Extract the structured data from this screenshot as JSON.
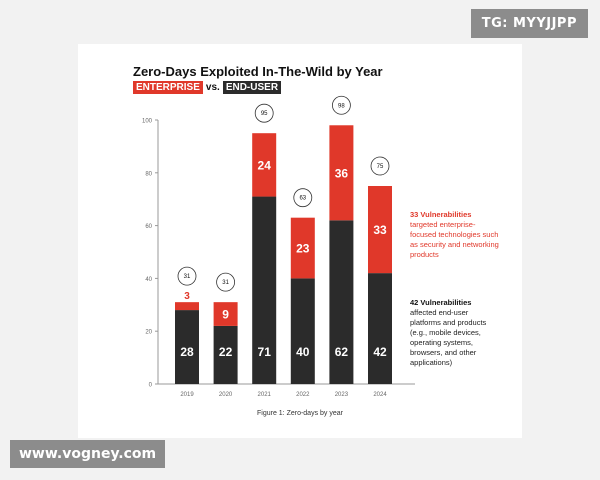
{
  "watermarks": {
    "top": "TG: MYYJJPP",
    "bottom": "www.vogney.com"
  },
  "colors": {
    "enterprise": "#e0382a",
    "end_user": "#2b2b2b"
  },
  "chart_data": {
    "type": "bar",
    "stacked": true,
    "title": "Zero-Days Exploited In-The-Wild by Year",
    "subtitle": {
      "enterprise": "ENTERPRISE",
      "vs": "vs.",
      "end_user": "END-USER"
    },
    "categories": [
      "2019",
      "2020",
      "2021",
      "2022",
      "2023",
      "2024"
    ],
    "series": [
      {
        "name": "END-USER",
        "values": [
          28,
          22,
          71,
          40,
          62,
          42
        ]
      },
      {
        "name": "ENTERPRISE",
        "values": [
          3,
          9,
          24,
          23,
          36,
          33
        ]
      }
    ],
    "totals": [
      31,
      31,
      95,
      63,
      98,
      75
    ],
    "ylim": [
      0,
      100
    ],
    "yticks": [
      0,
      20,
      40,
      60,
      80,
      100
    ],
    "grid": false,
    "caption": "Figure 1: Zero-days by year",
    "annotations": [
      {
        "heading": "33 Vulnerabilities",
        "text": "targeted enterprise-focused technologies such as security and networking products"
      },
      {
        "heading": "42 Vulnerabilities",
        "text": "affected end-user platforms and products (e.g., mobile devices, operating systems, browsers, and other applications)"
      }
    ]
  }
}
